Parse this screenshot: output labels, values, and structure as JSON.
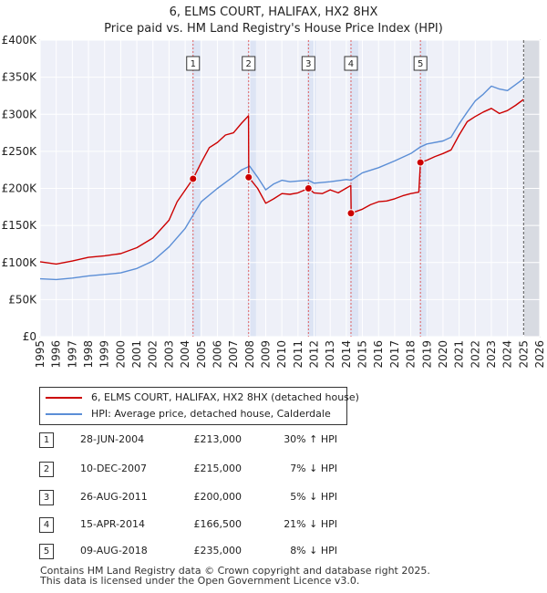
{
  "title": "6, ELMS COURT, HALIFAX, HX2 8HX",
  "subtitle": "Price paid vs. HM Land Registry's House Price Index (HPI)",
  "chart_data": {
    "type": "line",
    "title": "6, ELMS COURT, HALIFAX, HX2 8HX",
    "subtitle": "Price paid vs. HM Land Registry's House Price Index (HPI)",
    "xlim": [
      1995,
      2026
    ],
    "ylim": [
      0,
      400000
    ],
    "x_ticks": [
      1995,
      1996,
      1997,
      1998,
      1999,
      2000,
      2001,
      2002,
      2003,
      2004,
      2005,
      2006,
      2007,
      2008,
      2009,
      2010,
      2011,
      2012,
      2013,
      2014,
      2015,
      2016,
      2017,
      2018,
      2019,
      2020,
      2021,
      2022,
      2023,
      2024,
      2025,
      2026
    ],
    "y_ticks": [
      0,
      50000,
      100000,
      150000,
      200000,
      250000,
      300000,
      350000,
      400000
    ],
    "y_tick_labels": [
      "£0",
      "£50K",
      "£100K",
      "£150K",
      "£200K",
      "£250K",
      "£300K",
      "£350K",
      "£400K"
    ],
    "grid": true,
    "forecast_start": 2025.0,
    "series": [
      {
        "name": "6, ELMS COURT, HALIFAX, HX2 8HX (detached house)",
        "color": "#cc0000",
        "x": [
          1995,
          1996,
          1997,
          1998,
          1999,
          2000,
          2001,
          2002,
          2003,
          2003.5,
          2004.49,
          2005,
          2005.5,
          2006,
          2006.5,
          2007,
          2007.5,
          2007.93,
          2007.95,
          2008.5,
          2009,
          2009.5,
          2010,
          2010.5,
          2011,
          2011.65,
          2012,
          2012.5,
          2013,
          2013.5,
          2014.28,
          2014.3,
          2015,
          2015.5,
          2016,
          2016.5,
          2017,
          2017.5,
          2018,
          2018.5,
          2018.6,
          2019,
          2019.5,
          2020,
          2020.5,
          2021,
          2021.5,
          2022,
          2022.5,
          2023,
          2023.5,
          2024,
          2024.5,
          2025
        ],
        "y": [
          101000,
          98000,
          102000,
          107000,
          109000,
          112000,
          120000,
          133000,
          157000,
          182000,
          213000,
          235000,
          255000,
          262000,
          272000,
          275000,
          288000,
          298000,
          215000,
          200000,
          180000,
          186000,
          193000,
          192000,
          194000,
          200000,
          194000,
          193000,
          198000,
          194000,
          204000,
          166500,
          172000,
          178000,
          182000,
          183000,
          186000,
          190000,
          193000,
          195000,
          235000,
          238000,
          243000,
          247000,
          252000,
          272000,
          290000,
          297000,
          303000,
          308000,
          301000,
          305000,
          312000,
          320000
        ]
      },
      {
        "name": "HPI: Average price, detached house, Calderdale",
        "color": "#5b8ed6",
        "x": [
          1995,
          1996,
          1997,
          1998,
          1999,
          2000,
          2001,
          2002,
          2003,
          2004,
          2004.49,
          2005,
          2006,
          2007,
          2007.5,
          2008,
          2008.5,
          2009,
          2009.5,
          2010,
          2010.5,
          2011,
          2011.65,
          2012,
          2013,
          2014,
          2014.3,
          2015,
          2016,
          2017,
          2018,
          2018.6,
          2019,
          2020,
          2020.5,
          2021,
          2021.5,
          2022,
          2022.5,
          2023,
          2023.5,
          2024,
          2024.5,
          2025
        ],
        "y": [
          78000,
          77000,
          79000,
          82000,
          84000,
          86000,
          92000,
          102000,
          121000,
          146000,
          164000,
          182000,
          200000,
          216000,
          225000,
          230000,
          215000,
          198000,
          206000,
          211000,
          209000,
          210000,
          211000,
          207000,
          209000,
          212000,
          211000,
          221000,
          228000,
          237000,
          247000,
          256000,
          260000,
          264000,
          269000,
          287000,
          303000,
          318000,
          327000,
          338000,
          334000,
          332000,
          340000,
          348000
        ]
      }
    ],
    "sales": [
      {
        "label": "1",
        "x": 2004.49,
        "y": 213000
      },
      {
        "label": "2",
        "x": 2007.94,
        "y": 215000
      },
      {
        "label": "3",
        "x": 2011.65,
        "y": 200000
      },
      {
        "label": "4",
        "x": 2014.29,
        "y": 166500
      },
      {
        "label": "5",
        "x": 2018.6,
        "y": 235000
      }
    ]
  },
  "legend": {
    "red_label": "6, ELMS COURT, HALIFAX, HX2 8HX (detached house)",
    "blue_label": "HPI: Average price, detached house, Calderdale"
  },
  "transactions": [
    {
      "num": "1",
      "date": "28-JUN-2004",
      "price": "£213,000",
      "hpi": "30% ↑ HPI"
    },
    {
      "num": "2",
      "date": "10-DEC-2007",
      "price": "£215,000",
      "hpi": "7% ↓ HPI"
    },
    {
      "num": "3",
      "date": "26-AUG-2011",
      "price": "£200,000",
      "hpi": "5% ↓ HPI"
    },
    {
      "num": "4",
      "date": "15-APR-2014",
      "price": "£166,500",
      "hpi": "21% ↓ HPI"
    },
    {
      "num": "5",
      "date": "09-AUG-2018",
      "price": "£235,000",
      "hpi": "8% ↓ HPI"
    }
  ],
  "footer": {
    "line1": "Contains HM Land Registry data © Crown copyright and database right 2025.",
    "line2": "This data is licensed under the Open Government Licence v3.0."
  }
}
